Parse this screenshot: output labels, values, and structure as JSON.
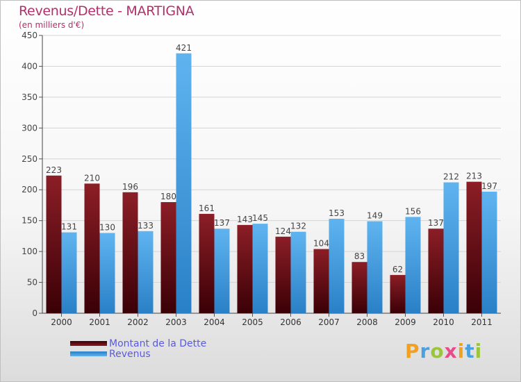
{
  "title": "Revenus/Dette - MARTIGNA",
  "subtitle": "(en milliers d'€)",
  "colors": {
    "dette": "#7a0f16",
    "revenus": "#3f9be0",
    "title": "#b0306a",
    "legend_text": "#5a5ae0"
  },
  "legend": {
    "dette_label": "Montant de la Dette",
    "revenus_label": "Revenus"
  },
  "logo": {
    "text": "Proxiti",
    "letters": [
      "P",
      "r",
      "o",
      "x",
      "i",
      "t",
      "i"
    ]
  },
  "chart_data": {
    "type": "bar",
    "title": "Revenus/Dette - MARTIGNA",
    "subtitle": "(en milliers d'€)",
    "categories": [
      "2000",
      "2001",
      "2002",
      "2003",
      "2004",
      "2005",
      "2006",
      "2007",
      "2008",
      "2009",
      "2010",
      "2011"
    ],
    "series": [
      {
        "name": "Montant de la Dette",
        "values": [
          223,
          210,
          196,
          180,
          161,
          143,
          124,
          104,
          83,
          62,
          137,
          213
        ]
      },
      {
        "name": "Revenus",
        "values": [
          131,
          130,
          133,
          421,
          137,
          145,
          132,
          153,
          149,
          156,
          212,
          197
        ]
      }
    ],
    "ylim": [
      0,
      450
    ],
    "yticks": [
      0,
      50,
      100,
      150,
      200,
      250,
      300,
      350,
      400,
      450
    ],
    "grid": true,
    "legend_position": "bottom-left"
  }
}
